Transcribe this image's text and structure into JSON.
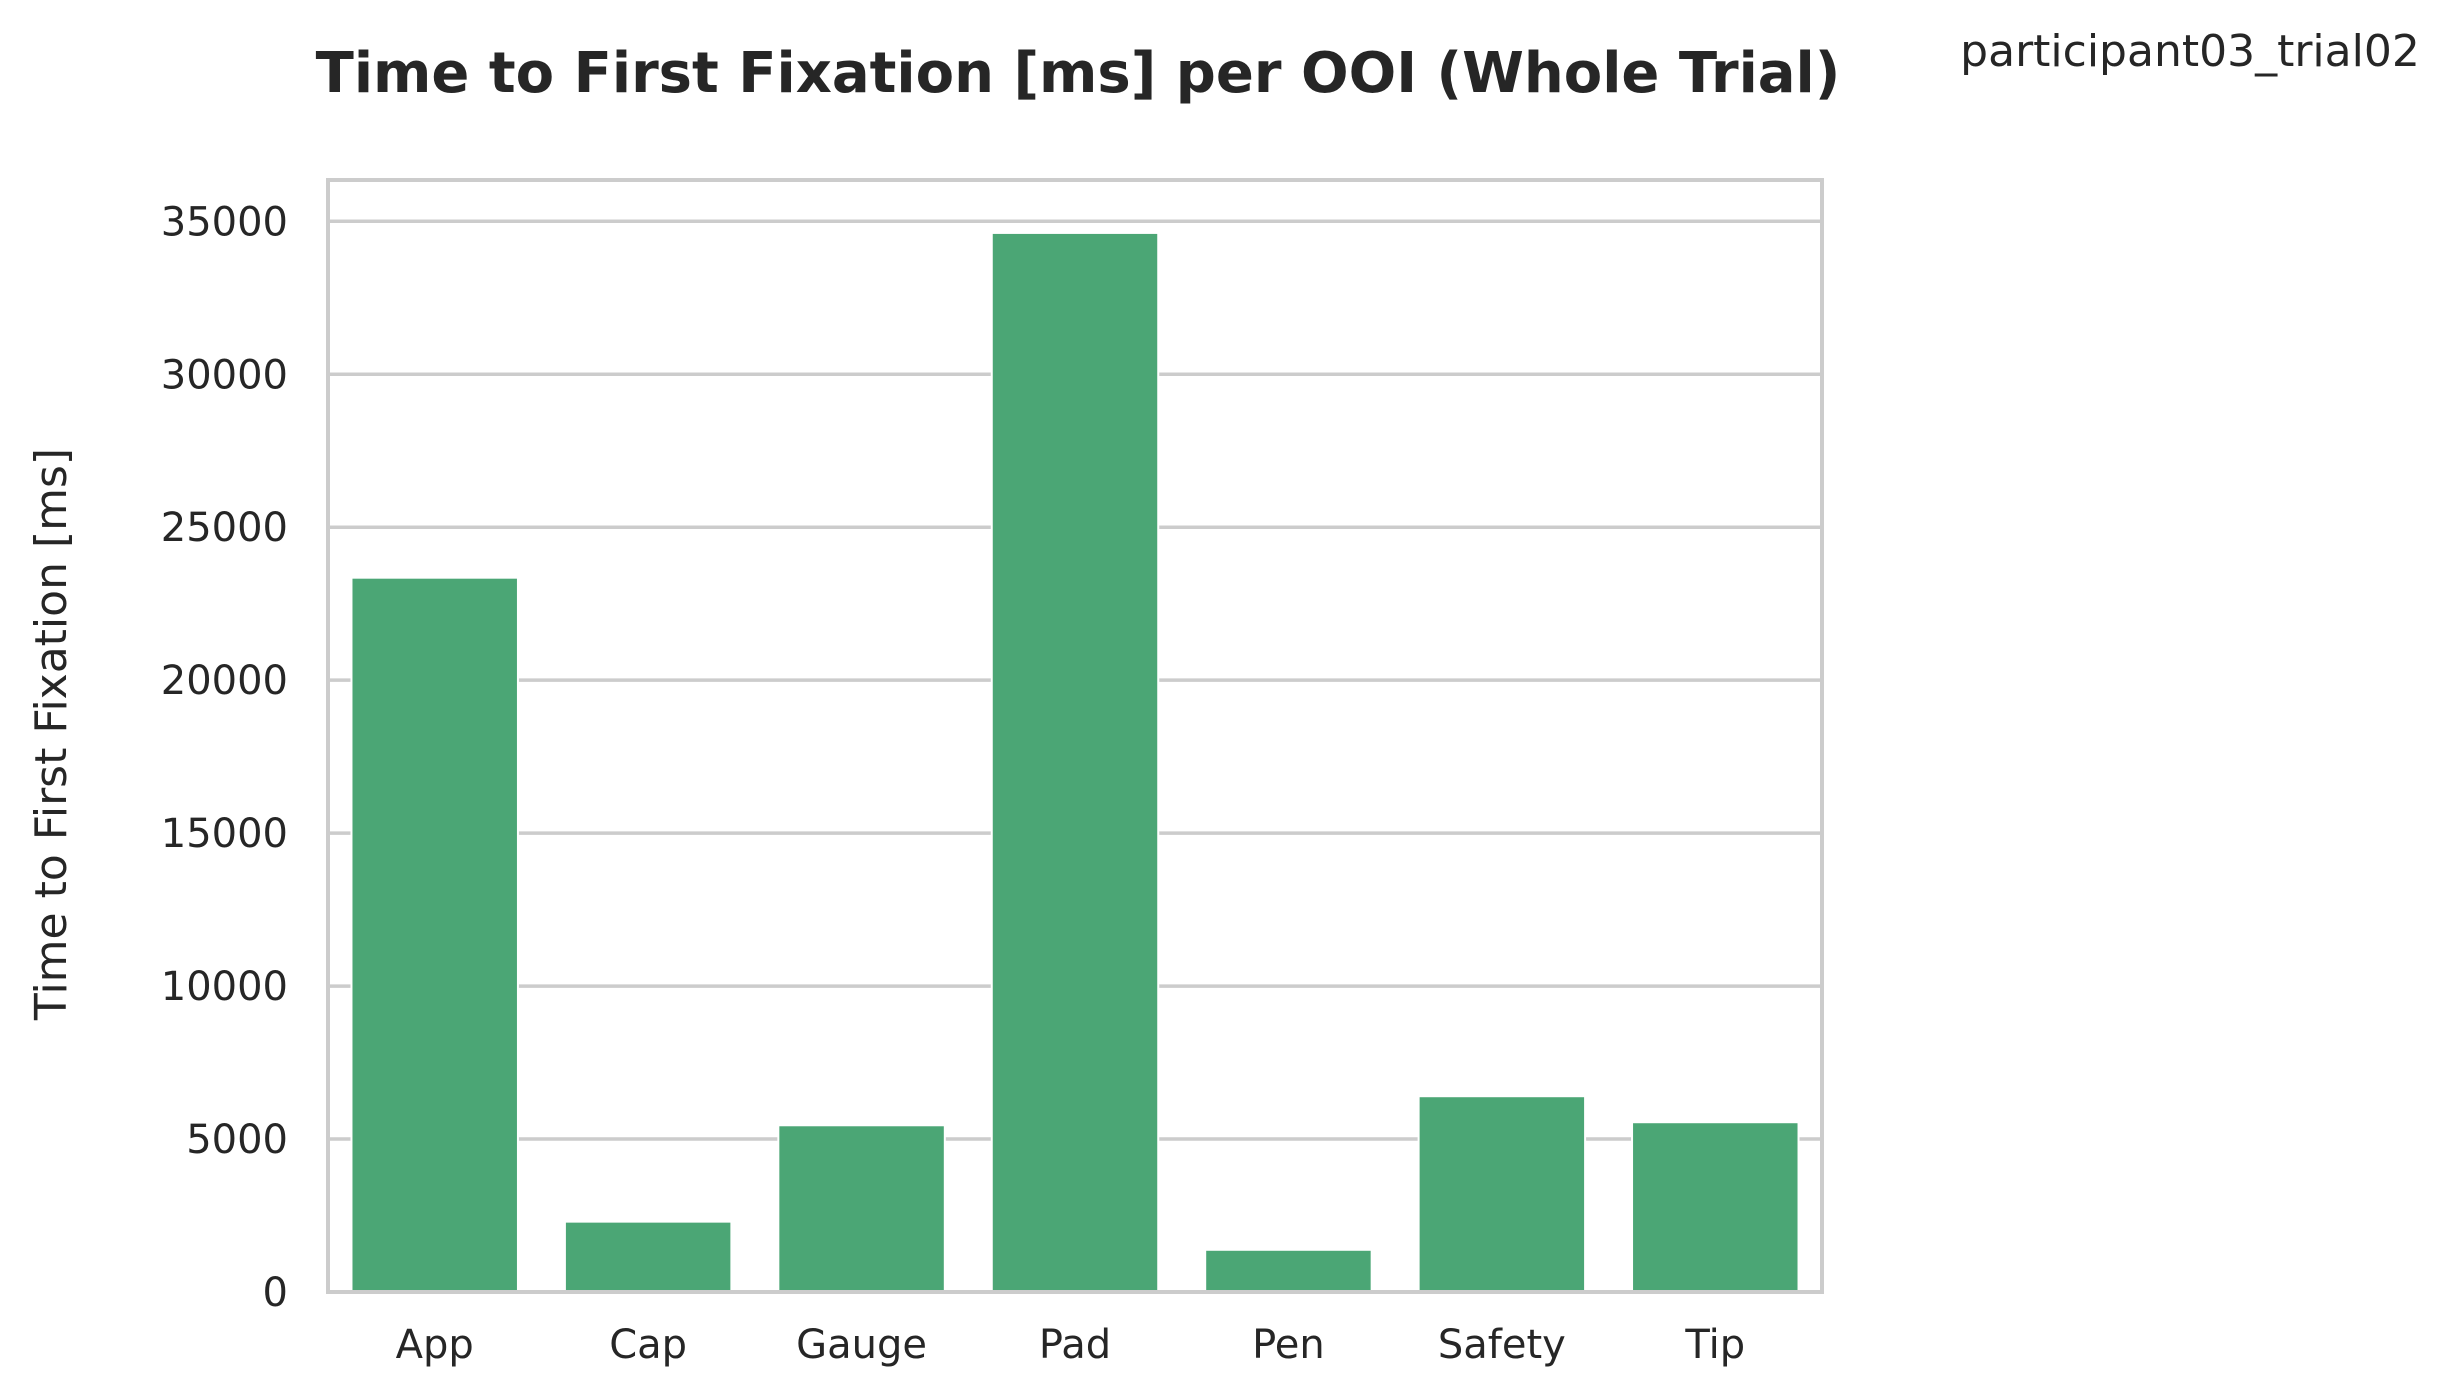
{
  "subtitle": "participant03_trial02",
  "chart_data": {
    "type": "bar",
    "title": "Time to First Fixation [ms] per OOI (Whole Trial)",
    "xlabel": "",
    "ylabel": "Time to First Fixation [ms]",
    "categories": [
      "App",
      "Cap",
      "Gauge",
      "Pad",
      "Pen",
      "Safety",
      "Tip"
    ],
    "values": [
      23350,
      2300,
      5450,
      34620,
      1380,
      6400,
      5550
    ],
    "ylim": [
      0,
      36350
    ],
    "yticks": [
      0,
      5000,
      10000,
      15000,
      20000,
      25000,
      30000,
      35000
    ],
    "grid": true,
    "bar_color": "#4ba675"
  }
}
